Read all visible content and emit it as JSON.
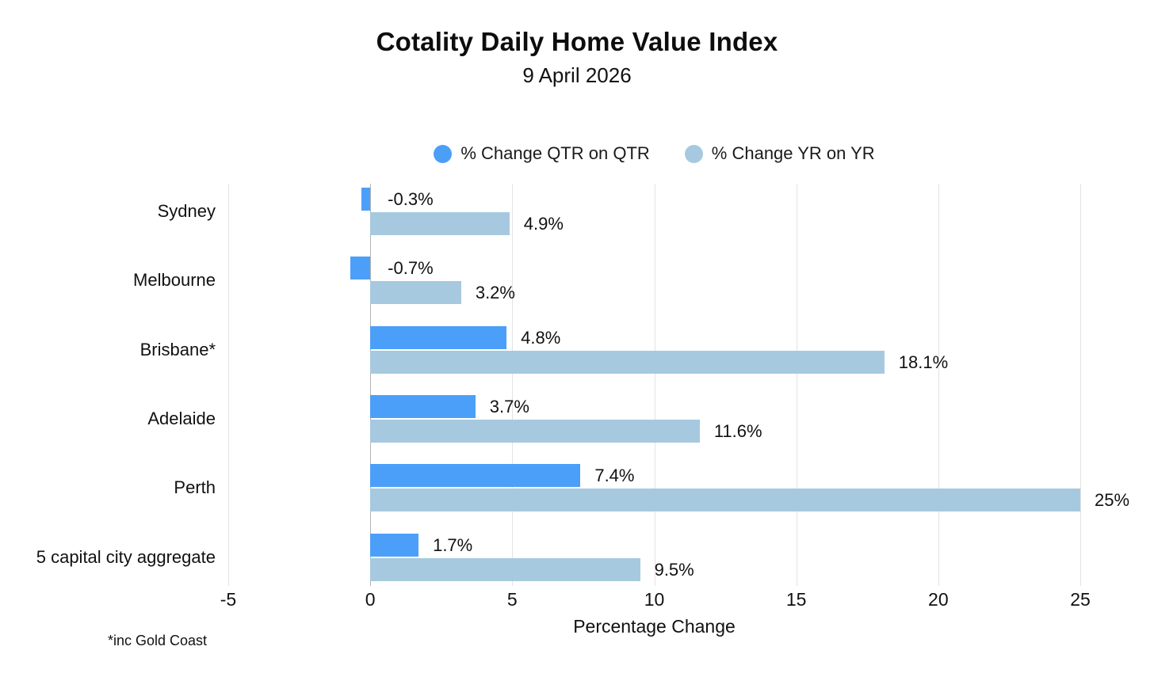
{
  "chart_data": {
    "type": "bar",
    "orientation": "horizontal",
    "title": "Cotality Daily Home Value Index",
    "subtitle": "9 April 2026",
    "xlabel": "Percentage Change",
    "footnote": "*inc Gold Coast",
    "categories": [
      "Sydney",
      "Melbourne",
      "Brisbane*",
      "Adelaide",
      "Perth",
      "5 capital city aggregate"
    ],
    "series": [
      {
        "name": "% Change QTR on QTR",
        "color": "#4C9FF8",
        "values": [
          -0.3,
          -0.7,
          4.8,
          3.7,
          7.4,
          1.7
        ],
        "labels": [
          "-0.3%",
          "-0.7%",
          "4.8%",
          "3.7%",
          "7.4%",
          "1.7%"
        ]
      },
      {
        "name": "% Change YR on YR",
        "color": "#A6C9DF",
        "values": [
          4.9,
          3.2,
          18.1,
          11.6,
          25,
          9.5
        ],
        "labels": [
          "4.9%",
          "3.2%",
          "18.1%",
          "11.6%",
          "25%",
          "9.5%"
        ]
      }
    ],
    "xlim": [
      -5,
      25
    ],
    "xticks": [
      -5,
      0,
      5,
      10,
      15,
      20,
      25
    ],
    "grid": true,
    "legend_position": "top",
    "colors": {
      "gridline": "#e3e3e3",
      "zero_line": "#b3b3b3",
      "text": "#111111"
    }
  }
}
